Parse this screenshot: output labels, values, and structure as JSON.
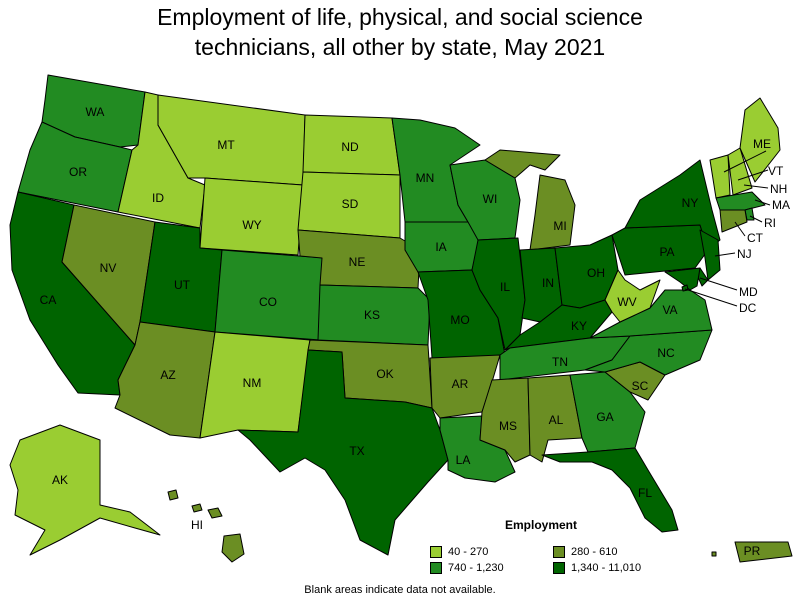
{
  "title": {
    "line1": "Employment of life, physical, and social science",
    "line2": "technicians, all other by state, May 2021"
  },
  "colors": {
    "band1": "#9acd32",
    "band2": "#6b8e23",
    "band3": "#228b22",
    "band4": "#006400",
    "border": "#000000",
    "background": "#ffffff"
  },
  "legend": {
    "title": "Employment",
    "items": [
      {
        "label": "40 - 270",
        "color": "#9acd32"
      },
      {
        "label": "280 - 610",
        "color": "#6b8e23"
      },
      {
        "label": "740 - 1,230",
        "color": "#228b22"
      },
      {
        "label": "1,340 - 11,010",
        "color": "#006400"
      }
    ]
  },
  "footnote": "Blank areas indicate data not available.",
  "states": {
    "WA": "band3",
    "OR": "band3",
    "CA": "band4",
    "ID": "band1",
    "NV": "band2",
    "MT": "band1",
    "WY": "band1",
    "UT": "band4",
    "AZ": "band2",
    "CO": "band3",
    "NM": "band1",
    "ND": "band1",
    "SD": "band1",
    "NE": "band2",
    "KS": "band3",
    "OK": "band2",
    "TX": "band4",
    "MN": "band3",
    "IA": "band3",
    "MO": "band4",
    "AR": "band2",
    "LA": "band3",
    "WI": "band3",
    "IL": "band4",
    "MI": "band2",
    "IN": "band4",
    "OH": "band4",
    "KY": "band4",
    "TN": "band3",
    "MS": "band2",
    "AL": "band2",
    "GA": "band3",
    "FL": "band4",
    "SC": "band2",
    "NC": "band3",
    "VA": "band3",
    "WV": "band1",
    "PA": "band4",
    "NY": "band4",
    "ME": "band1",
    "VT": "band1",
    "NH": "band1",
    "MA": "band3",
    "RI": "band3",
    "CT": "band2",
    "NJ": "band4",
    "DE": "band4",
    "MD": "band4",
    "DC": "band4",
    "AK": "band1",
    "HI": "band2",
    "PR": "band2"
  }
}
